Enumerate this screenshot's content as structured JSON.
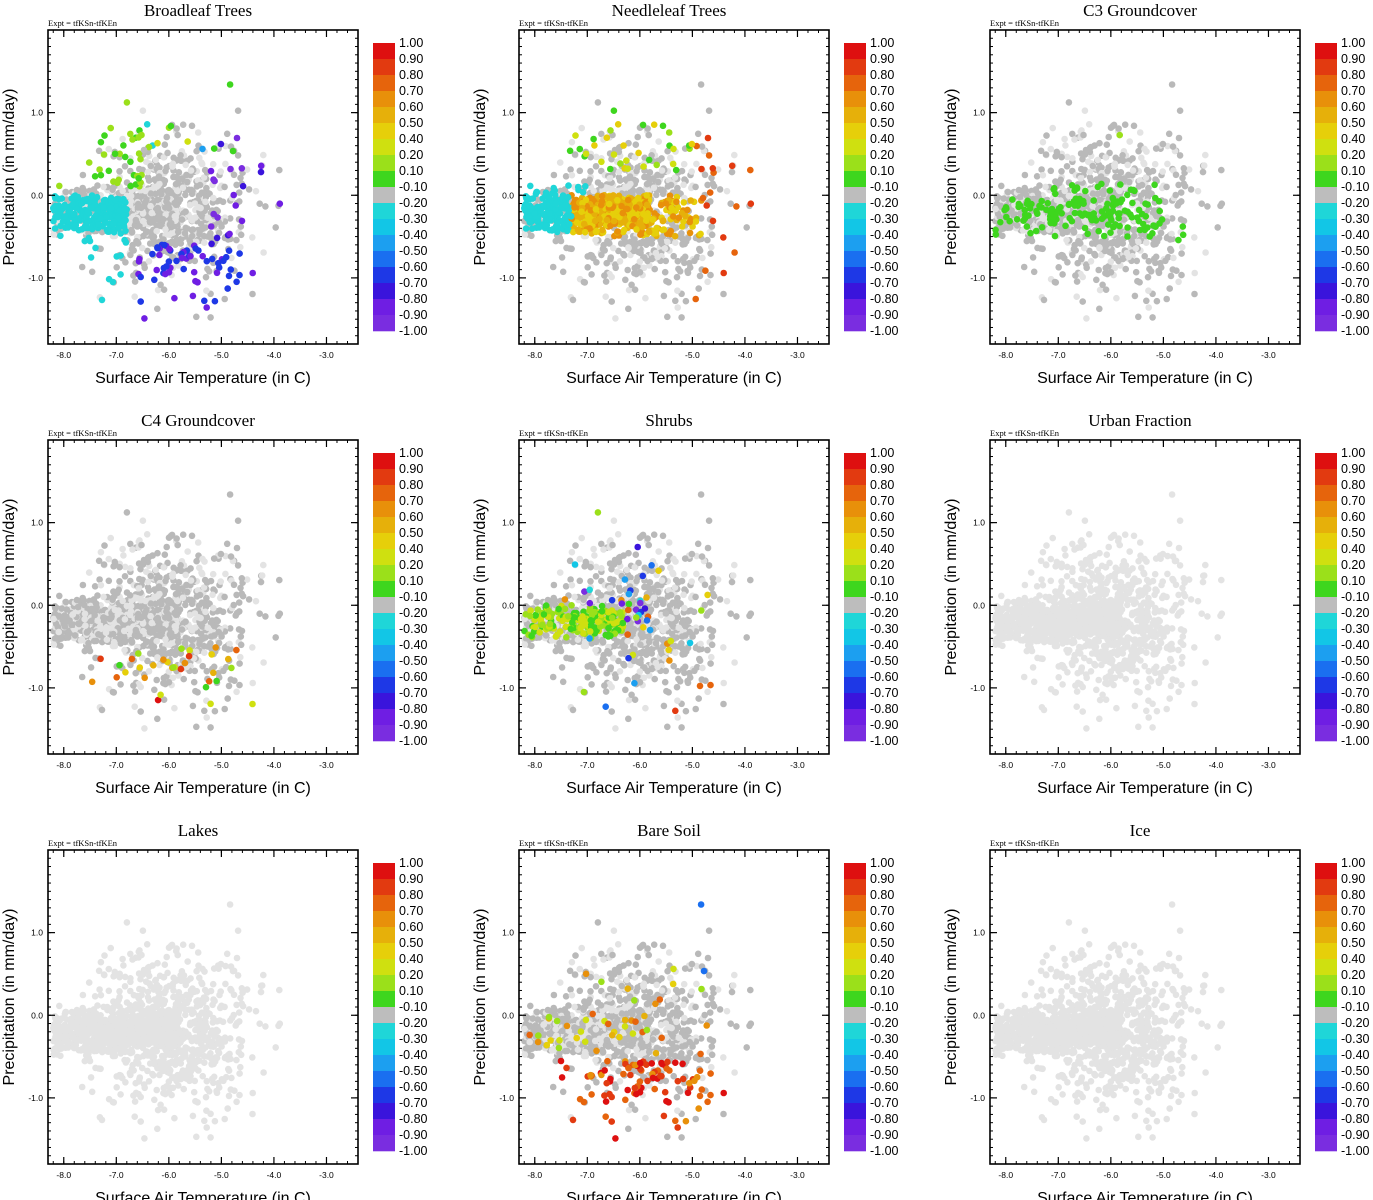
{
  "colors": {
    "light_gray": "#e3e3e3",
    "mid_gray": "#b9b9b9",
    "scale": [
      "#7a2de0",
      "#6f1ee3",
      "#3a14dc",
      "#1e38e6",
      "#1a6ff0",
      "#1c9ff0",
      "#12c6e6",
      "#1fd6d8",
      "#bdbdbd",
      "#3ed61e",
      "#9be01a",
      "#cfe010",
      "#e6cf0a",
      "#e6b00a",
      "#e8900a",
      "#e6640c",
      "#e23a10",
      "#de1010"
    ]
  },
  "colorbar": {
    "labels": [
      "1.00",
      "0.90",
      "0.80",
      "0.70",
      "0.60",
      "0.50",
      "0.40",
      "0.20",
      "0.10",
      "-0.10",
      "-0.20",
      "-0.30",
      "-0.40",
      "-0.50",
      "-0.60",
      "-0.70",
      "-0.80",
      "-0.90",
      "-1.00"
    ]
  },
  "chart_data": [
    {
      "type": "scatter",
      "title": "Broadleaf Trees",
      "subtitle": "Expt = tfKSn-tfKEn",
      "xlabel": "Surface Air Temperature (in C)",
      "ylabel": "Precipitation (in mm/day)",
      "xlim": [
        -8.3,
        -2.4
      ],
      "ylim": [
        -1.8,
        2.0
      ],
      "xticks": [
        "-8.0",
        "-7.0",
        "-6.0",
        "-5.0",
        "-4.0",
        "-3.0"
      ],
      "yticks": [
        "1.0",
        "0.0",
        "-1.0"
      ],
      "xtick_values": [
        -8,
        -7,
        -6,
        -5,
        -4,
        -3
      ],
      "ytick_values": [
        1,
        0,
        -1
      ],
      "profile": "broadleaf"
    },
    {
      "type": "scatter",
      "title": "Needleleaf Trees",
      "subtitle": "Expt = tfKSn-tfKEn",
      "xlabel": "Surface Air Temperature (in C)",
      "ylabel": "Precipitation (in mm/day)",
      "xlim": [
        -8.3,
        -2.4
      ],
      "ylim": [
        -1.8,
        2.0
      ],
      "xticks": [
        "-8.0",
        "-7.0",
        "-6.0",
        "-5.0",
        "-4.0",
        "-3.0"
      ],
      "yticks": [
        "1.0",
        "0.0",
        "-1.0"
      ],
      "xtick_values": [
        -8,
        -7,
        -6,
        -5,
        -4,
        -3
      ],
      "ytick_values": [
        1,
        0,
        -1
      ],
      "profile": "needleleaf"
    },
    {
      "type": "scatter",
      "title": "C3 Groundcover",
      "subtitle": "Expt = tfKSn-tfKEn",
      "xlabel": "Surface Air Temperature (in C)",
      "ylabel": "Precipitation (in mm/day)",
      "xlim": [
        -8.3,
        -2.4
      ],
      "ylim": [
        -1.8,
        2.0
      ],
      "xticks": [
        "-8.0",
        "-7.0",
        "-6.0",
        "-5.0",
        "-4.0",
        "-3.0"
      ],
      "yticks": [
        "1.0",
        "0.0",
        "-1.0"
      ],
      "xtick_values": [
        -8,
        -7,
        -6,
        -5,
        -4,
        -3
      ],
      "ytick_values": [
        1,
        0,
        -1
      ],
      "profile": "c3"
    },
    {
      "type": "scatter",
      "title": "C4 Groundcover",
      "subtitle": "Expt = tfKSn-tfKEn",
      "xlabel": "Surface Air Temperature (in C)",
      "ylabel": "Precipitation (in mm/day)",
      "xlim": [
        -8.3,
        -2.4
      ],
      "ylim": [
        -1.8,
        2.0
      ],
      "xticks": [
        "-8.0",
        "-7.0",
        "-6.0",
        "-5.0",
        "-4.0",
        "-3.0"
      ],
      "yticks": [
        "1.0",
        "0.0",
        "-1.0"
      ],
      "xtick_values": [
        -8,
        -7,
        -6,
        -5,
        -4,
        -3
      ],
      "ytick_values": [
        1,
        0,
        -1
      ],
      "profile": "c4"
    },
    {
      "type": "scatter",
      "title": "Shrubs",
      "subtitle": "Expt = tfKSn-tfKEn",
      "xlabel": "Surface Air Temperature (in C)",
      "ylabel": "Precipitation (in mm/day)",
      "xlim": [
        -8.3,
        -2.4
      ],
      "ylim": [
        -1.8,
        2.0
      ],
      "xticks": [
        "-8.0",
        "-7.0",
        "-6.0",
        "-5.0",
        "-4.0",
        "-3.0"
      ],
      "yticks": [
        "1.0",
        "0.0",
        "-1.0"
      ],
      "xtick_values": [
        -8,
        -7,
        -6,
        -5,
        -4,
        -3
      ],
      "ytick_values": [
        1,
        0,
        -1
      ],
      "profile": "shrubs"
    },
    {
      "type": "scatter",
      "title": "Urban Fraction",
      "subtitle": "Expt = tfKSn-tfKEn",
      "xlabel": "Surface Air Temperature (in C)",
      "ylabel": "Precipitation (in mm/day)",
      "xlim": [
        -8.3,
        -2.4
      ],
      "ylim": [
        -1.8,
        2.0
      ],
      "xticks": [
        "-8.0",
        "-7.0",
        "-6.0",
        "-5.0",
        "-4.0",
        "-3.0"
      ],
      "yticks": [
        "1.0",
        "0.0",
        "-1.0"
      ],
      "xtick_values": [
        -8,
        -7,
        -6,
        -5,
        -4,
        -3
      ],
      "ytick_values": [
        1,
        0,
        -1
      ],
      "profile": "none"
    },
    {
      "type": "scatter",
      "title": "Lakes",
      "subtitle": "Expt = tfKSn-tfKEn",
      "xlabel": "Surface Air Temperature (in C)",
      "ylabel": "Precipitation (in mm/day)",
      "xlim": [
        -8.3,
        -2.4
      ],
      "ylim": [
        -1.8,
        2.0
      ],
      "xticks": [
        "-8.0",
        "-7.0",
        "-6.0",
        "-5.0",
        "-4.0",
        "-3.0"
      ],
      "yticks": [
        "1.0",
        "0.0",
        "-1.0"
      ],
      "xtick_values": [
        -8,
        -7,
        -6,
        -5,
        -4,
        -3
      ],
      "ytick_values": [
        1,
        0,
        -1
      ],
      "profile": "none"
    },
    {
      "type": "scatter",
      "title": "Bare Soil",
      "subtitle": "Expt = tfKSn-tfKEn",
      "xlabel": "Surface Air Temperature (in C)",
      "ylabel": "Precipitation (in mm/day)",
      "xlim": [
        -8.3,
        -2.4
      ],
      "ylim": [
        -1.8,
        2.0
      ],
      "xticks": [
        "-8.0",
        "-7.0",
        "-6.0",
        "-5.0",
        "-4.0",
        "-3.0"
      ],
      "yticks": [
        "1.0",
        "0.0",
        "-1.0"
      ],
      "xtick_values": [
        -8,
        -7,
        -6,
        -5,
        -4,
        -3
      ],
      "ytick_values": [
        1,
        0,
        -1
      ],
      "profile": "baresoil"
    },
    {
      "type": "scatter",
      "title": "Ice",
      "subtitle": "Expt = tfKSn-tfKEn",
      "xlabel": "Surface Air Temperature (in C)",
      "ylabel": "Precipitation (in mm/day)",
      "xlim": [
        -8.3,
        -2.4
      ],
      "ylim": [
        -1.8,
        2.0
      ],
      "xticks": [
        "-8.0",
        "-7.0",
        "-6.0",
        "-5.0",
        "-4.0",
        "-3.0"
      ],
      "yticks": [
        "1.0",
        "0.0",
        "-1.0"
      ],
      "xtick_values": [
        -8,
        -7,
        -6,
        -5,
        -4,
        -3
      ],
      "ytick_values": [
        1,
        0,
        -1
      ],
      "profile": "none"
    }
  ]
}
